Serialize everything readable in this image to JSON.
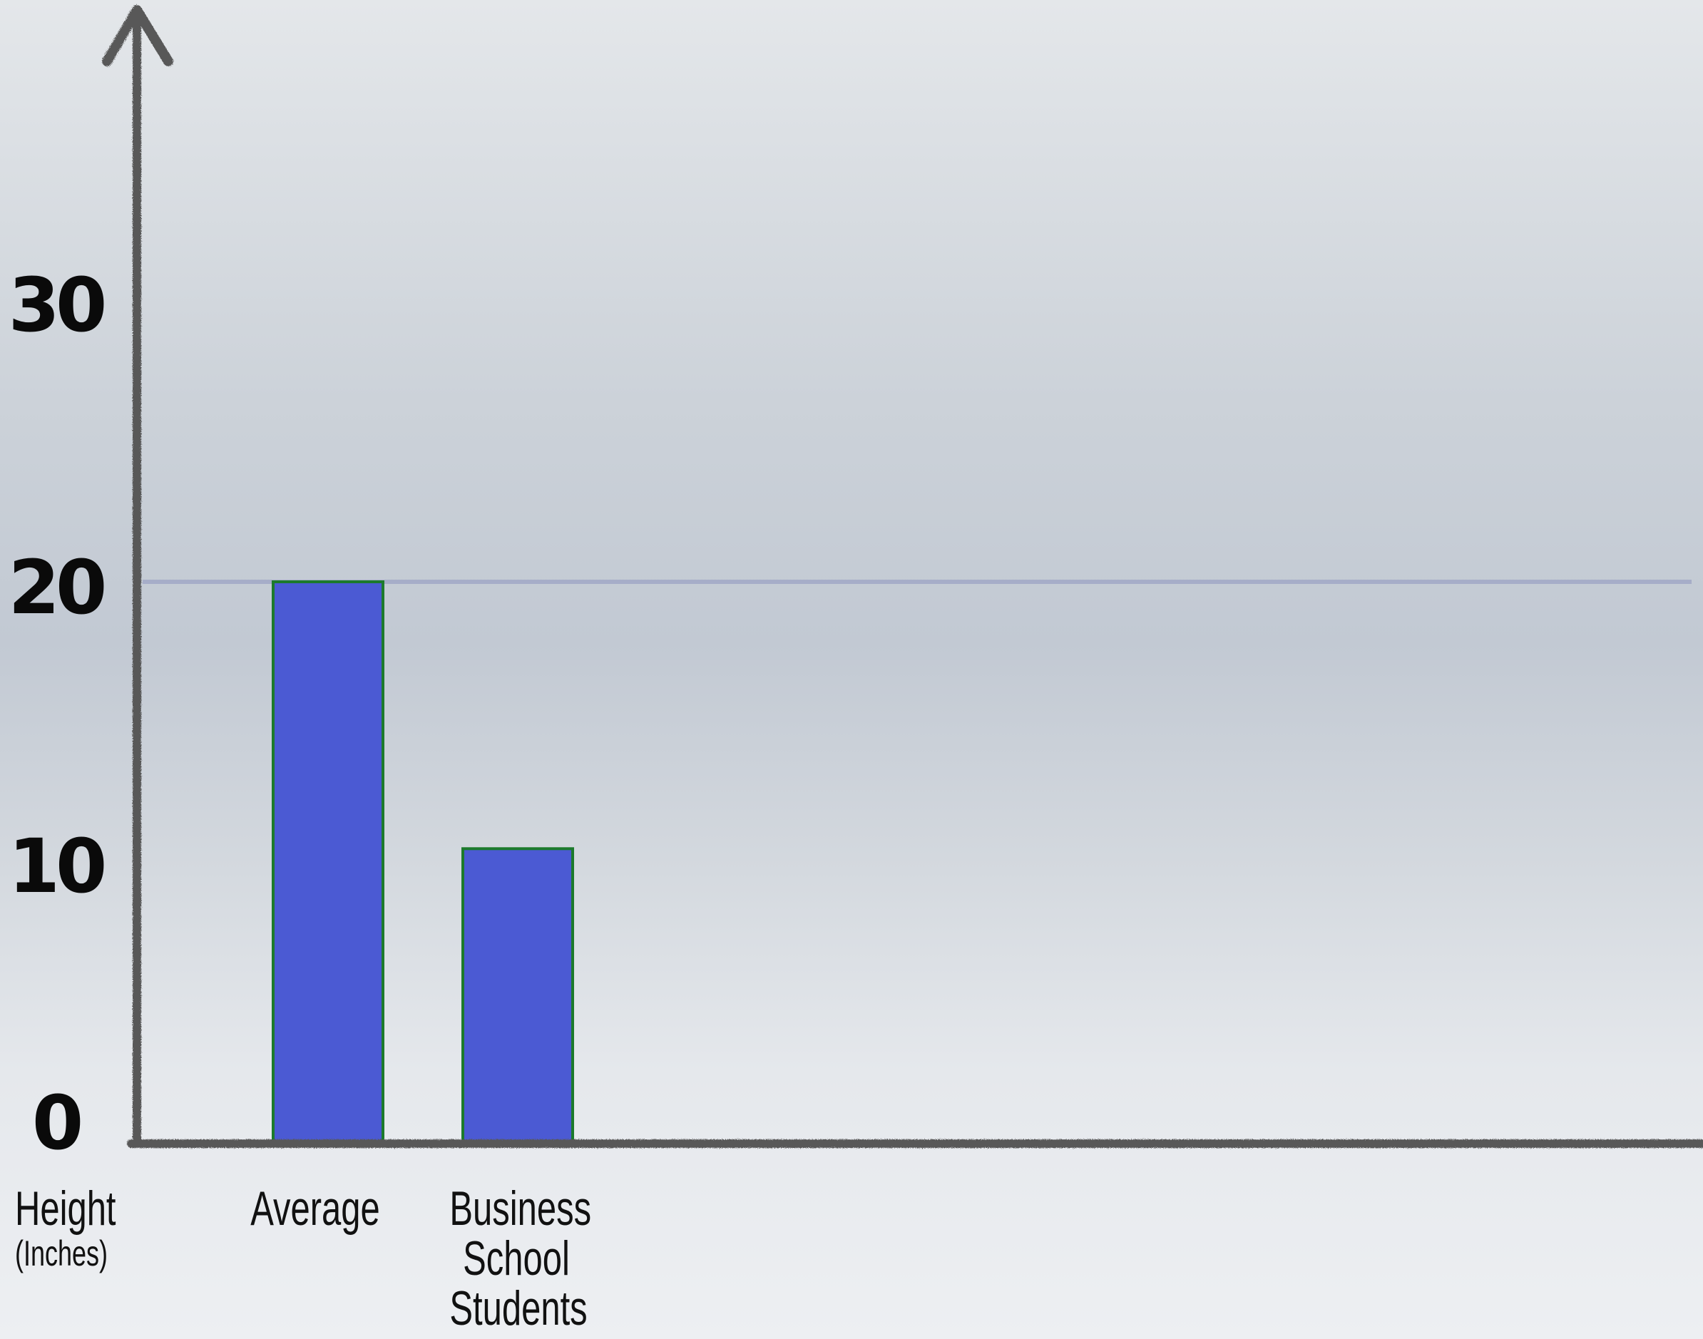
{
  "chart_data": {
    "type": "bar",
    "categories": [
      "Average",
      "Business\nSchool\nStudents"
    ],
    "values": [
      20,
      10.5
    ],
    "ylim": [
      0,
      40
    ],
    "yticks": [
      "0",
      "10",
      "20",
      "30"
    ],
    "ylabel": "Height",
    "ylabel_unit": "(Inches)",
    "grid": false,
    "reference_line_value": 20,
    "colors": {
      "bar_fill": "#4b5ad3",
      "bar_stroke": "#1c7a2c",
      "axis": "#585858",
      "reference_line": "#a6adc8"
    }
  }
}
